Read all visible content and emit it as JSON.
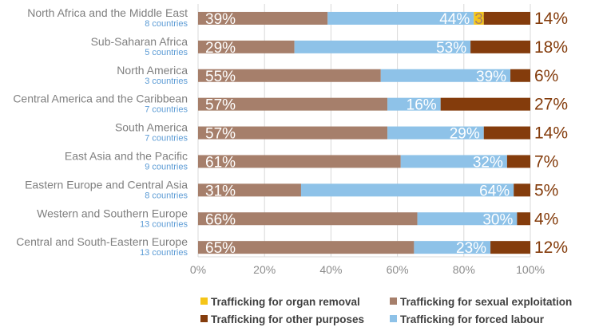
{
  "chart_data": {
    "type": "bar",
    "orientation": "horizontal",
    "stacked": true,
    "xlim": [
      0,
      100
    ],
    "x_ticks": [
      "0%",
      "20%",
      "40%",
      "60%",
      "80%",
      "100%"
    ],
    "categories": [
      {
        "region": "North Africa and the Middle East",
        "countries": "8 countries"
      },
      {
        "region": "Sub-Saharan Africa",
        "countries": "5 countries"
      },
      {
        "region": "North America",
        "countries": "3 countries"
      },
      {
        "region": "Central America and the Caribbean",
        "countries": "7 countries"
      },
      {
        "region": "South America",
        "countries": "7 countries"
      },
      {
        "region": "East Asia and the Pacific",
        "countries": "9 countries"
      },
      {
        "region": "Eastern Europe and Central Asia",
        "countries": "8 countries"
      },
      {
        "region": "Western and Southern Europe",
        "countries": "13 countries"
      },
      {
        "region": "Central and South-Eastern Europe",
        "countries": "13 countries"
      }
    ],
    "series": [
      {
        "name": "Trafficking for sexual exploitation",
        "color": "#a67f6b",
        "values": [
          39,
          29,
          55,
          57,
          57,
          61,
          31,
          66,
          65
        ],
        "labels": [
          "39%",
          "29%",
          "55%",
          "57%",
          "57%",
          "61%",
          "31%",
          "66%",
          "65%"
        ]
      },
      {
        "name": "Trafficking for forced labour",
        "color": "#8ec2e8",
        "values": [
          44,
          53,
          39,
          16,
          29,
          32,
          64,
          30,
          23
        ],
        "labels": [
          "44%",
          "53%",
          "39%",
          "16%",
          "29%",
          "32%",
          "64%",
          "30%",
          "23%"
        ]
      },
      {
        "name": "Trafficking for organ removal",
        "color": "#f5c518",
        "values": [
          3,
          0,
          0,
          0,
          0,
          0,
          0,
          0,
          0
        ],
        "labels": [
          "3%",
          "",
          "",
          "",
          "",
          "",
          "",
          "",
          ""
        ]
      },
      {
        "name": "Trafficking for other purposes",
        "color": "#843c0c",
        "values": [
          14,
          18,
          6,
          27,
          14,
          7,
          5,
          4,
          12
        ],
        "labels": [
          "14%",
          "18%",
          "6%",
          "27%",
          "14%",
          "7%",
          "5%",
          "4%",
          "12%"
        ]
      }
    ],
    "legend": {
      "placement": "bottom-right",
      "items": [
        {
          "label": "Trafficking for organ removal",
          "color": "#f5c518"
        },
        {
          "label": "Trafficking for sexual exploitation",
          "color": "#a67f6b"
        },
        {
          "label": "Trafficking for other purposes",
          "color": "#843c0c"
        },
        {
          "label": "Trafficking for forced labour",
          "color": "#8ec2e8"
        }
      ]
    },
    "grid": true
  }
}
